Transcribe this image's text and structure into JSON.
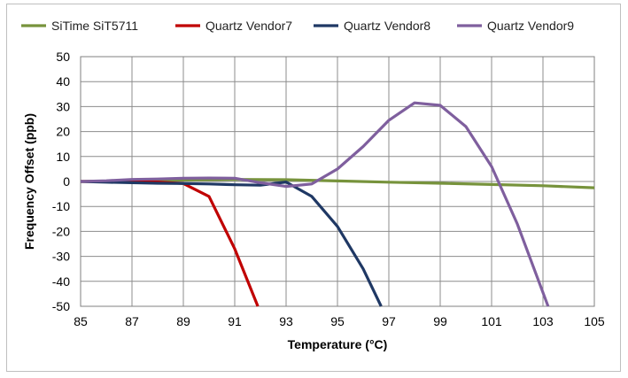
{
  "chart_data": {
    "type": "line",
    "xlabel": "Temperature (°C)",
    "ylabel": "Frequency Offset (ppb)",
    "xlim": [
      85,
      105
    ],
    "ylim": [
      -50,
      50
    ],
    "xticks": [
      85,
      87,
      89,
      91,
      93,
      95,
      97,
      99,
      101,
      103,
      105
    ],
    "yticks": [
      50,
      40,
      30,
      20,
      10,
      0,
      -10,
      -20,
      -30,
      -40,
      -50
    ],
    "grid": true,
    "legend": "top",
    "series": [
      {
        "name": "SiTime SiT5711",
        "color": "#77933c",
        "points": [
          [
            85,
            0
          ],
          [
            87,
            0.3
          ],
          [
            89,
            0.6
          ],
          [
            91,
            0.8
          ],
          [
            93,
            0.7
          ],
          [
            95,
            0.2
          ],
          [
            97,
            -0.3
          ],
          [
            99,
            -0.7
          ],
          [
            101,
            -1.2
          ],
          [
            103,
            -1.7
          ],
          [
            105,
            -2.5
          ]
        ]
      },
      {
        "name": "Quartz Vendor7",
        "color": "#c00000",
        "points": [
          [
            85,
            0
          ],
          [
            86,
            0
          ],
          [
            87,
            0
          ],
          [
            88,
            -0.2
          ],
          [
            89,
            -0.8
          ],
          [
            90,
            -6
          ],
          [
            91,
            -27
          ],
          [
            91.9,
            -50
          ]
        ]
      },
      {
        "name": "Quartz Vendor8",
        "color": "#1f3864",
        "points": [
          [
            85,
            0
          ],
          [
            86,
            -0.3
          ],
          [
            87,
            -0.5
          ],
          [
            88,
            -0.7
          ],
          [
            89,
            -0.8
          ],
          [
            90,
            -1
          ],
          [
            91,
            -1.3
          ],
          [
            92,
            -1.5
          ],
          [
            93,
            -0.2
          ],
          [
            94,
            -6
          ],
          [
            95,
            -18
          ],
          [
            96,
            -35
          ],
          [
            96.7,
            -50
          ]
        ]
      },
      {
        "name": "Quartz Vendor9",
        "color": "#7f5f9e",
        "points": [
          [
            85,
            0
          ],
          [
            86,
            0.3
          ],
          [
            87,
            0.8
          ],
          [
            88,
            1
          ],
          [
            89,
            1.3
          ],
          [
            90,
            1.4
          ],
          [
            91,
            1.3
          ],
          [
            92,
            -0.5
          ],
          [
            93,
            -2
          ],
          [
            94,
            -1
          ],
          [
            95,
            5
          ],
          [
            96,
            14
          ],
          [
            97,
            24.5
          ],
          [
            98,
            31.5
          ],
          [
            99,
            30.5
          ],
          [
            100,
            22
          ],
          [
            101,
            6
          ],
          [
            102,
            -17
          ],
          [
            103.2,
            -50
          ]
        ]
      }
    ]
  }
}
